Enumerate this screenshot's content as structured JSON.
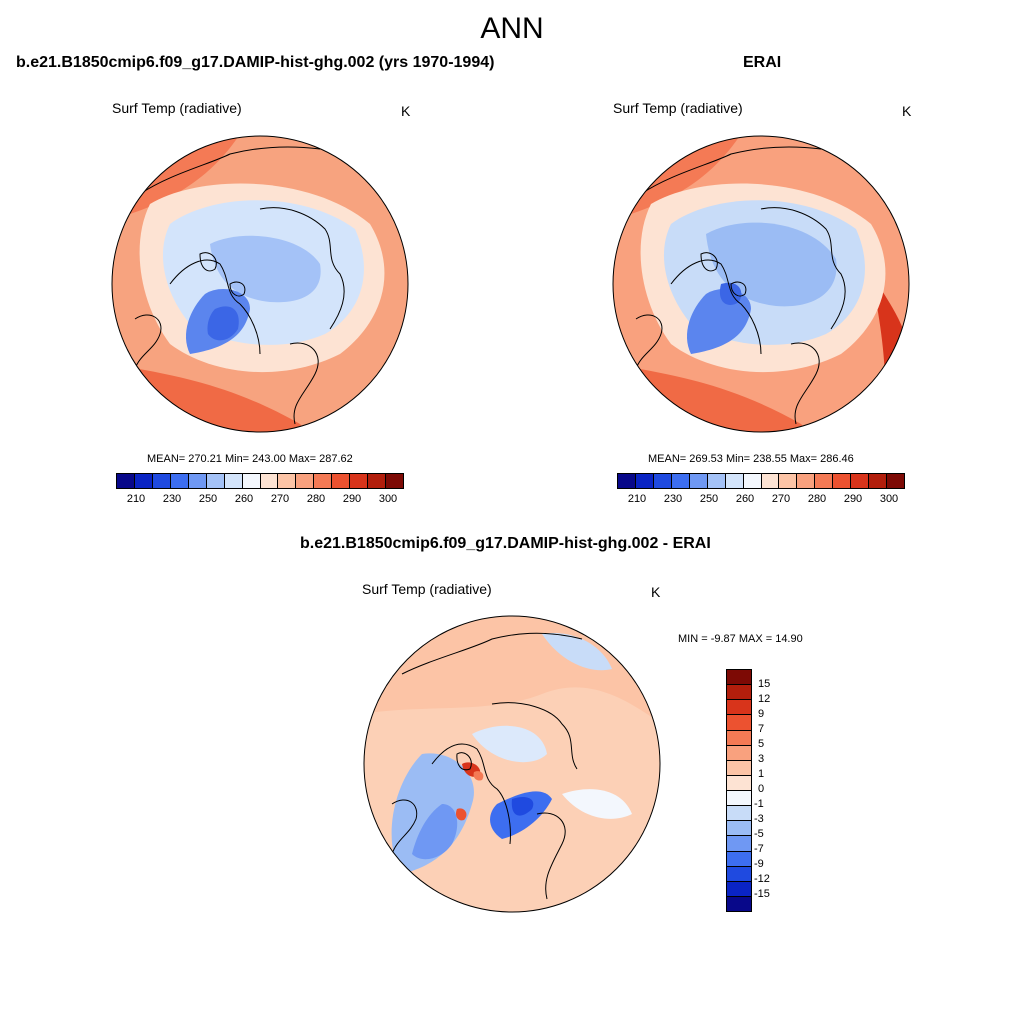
{
  "page": {
    "title": "ANN"
  },
  "panels": [
    {
      "id": "model",
      "title": "b.e21.B1850cmip6.f09_g17.DAMIP-hist-ghg.002 (yrs 1970-1994)",
      "variable": "Surf Temp (radiative)",
      "units": "K",
      "stats": "MEAN= 270.21  Min= 243.00  Max= 287.62",
      "mean": 270.21,
      "min": 243.0,
      "max": 287.62
    },
    {
      "id": "obs",
      "title": "ERAI",
      "variable": "Surf Temp (radiative)",
      "units": "K",
      "stats": "MEAN= 269.53  Min= 238.55  Max= 286.46",
      "mean": 269.53,
      "min": 238.55,
      "max": 286.46
    },
    {
      "id": "diff",
      "title": "b.e21.B1850cmip6.f09_g17.DAMIP-hist-ghg.002 - ERAI",
      "variable": "Surf Temp (radiative)",
      "units": "K",
      "stats": "MIN =  -9.87 MAX =  14.90",
      "min": -9.87,
      "max": 14.9
    }
  ],
  "colorbar_main": {
    "tick_labels": [
      "210",
      "230",
      "250",
      "260",
      "270",
      "280",
      "290",
      "300"
    ],
    "colors": [
      "#08088a",
      "#0a24c4",
      "#1f4ae0",
      "#3d6ef0",
      "#6f98f3",
      "#a4c2f7",
      "#d3e4fb",
      "#f3f7fd",
      "#fde3d3",
      "#fcc4a6",
      "#f9a17e",
      "#f47a55",
      "#ec5230",
      "#d8341b",
      "#b21e0c",
      "#7d0a05"
    ]
  },
  "colorbar_diff": {
    "tick_labels": [
      "15",
      "12",
      "9",
      "7",
      "5",
      "3",
      "1",
      "0",
      "-1",
      "-3",
      "-5",
      "-7",
      "-9",
      "-12",
      "-15"
    ],
    "colors": [
      "#7d0a05",
      "#b21e0c",
      "#d8341b",
      "#ec5230",
      "#f47a55",
      "#f9a17e",
      "#fcc4a6",
      "#fde3d3",
      "#f3f7fd",
      "#c8dcf8",
      "#9bbcf4",
      "#6f98f3",
      "#3d6ef0",
      "#1f4ae0",
      "#0a24c4",
      "#08088a"
    ]
  }
}
